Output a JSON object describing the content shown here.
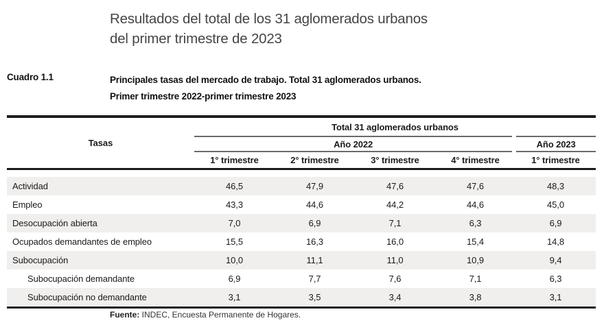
{
  "page": {
    "title_line1": "Resultados del total de los 31 aglomerados urbanos",
    "title_line2": "del primer trimestre de 2023",
    "table_label": "Cuadro 1.1",
    "subtitle_line1": "Principales tasas del mercado de trabajo. Total 31 aglomerados urbanos.",
    "subtitle_line2": "Primer trimestre 2022-primer trimestre 2023",
    "source_label": "Fuente:",
    "source_text": " INDEC, Encuesta Permanente de Hogares."
  },
  "table": {
    "corner_header": "Tasas",
    "group_header": "Total 31 aglomerados urbanos",
    "year_groups": [
      {
        "label": "Año 2022",
        "colspan": 4
      },
      {
        "label": "Año 2023",
        "colspan": 1
      }
    ],
    "column_headers": [
      "1° trimestre",
      "2° trimestre",
      "3° trimestre",
      "4° trimestre",
      "1° trimestre"
    ],
    "rows": [
      {
        "label": "Actividad",
        "indent": false,
        "values": [
          "46,5",
          "47,9",
          "47,6",
          "47,6",
          "48,3"
        ]
      },
      {
        "label": "Empleo",
        "indent": false,
        "values": [
          "43,3",
          "44,6",
          "44,2",
          "44,6",
          "45,0"
        ]
      },
      {
        "label": "Desocupación abierta",
        "indent": false,
        "values": [
          "7,0",
          "6,9",
          "7,1",
          "6,3",
          "6,9"
        ]
      },
      {
        "label": "Ocupados demandantes de empleo",
        "indent": false,
        "values": [
          "15,5",
          "16,3",
          "16,0",
          "15,4",
          "14,8"
        ]
      },
      {
        "label": "Subocupación",
        "indent": false,
        "values": [
          "10,0",
          "11,1",
          "11,0",
          "10,9",
          "9,4"
        ]
      },
      {
        "label": "Subocupación demandante",
        "indent": true,
        "values": [
          "6,9",
          "7,7",
          "7,6",
          "7,1",
          "6,3"
        ]
      },
      {
        "label": "Subocupación no demandante",
        "indent": true,
        "values": [
          "3,1",
          "3,5",
          "3,4",
          "3,8",
          "3,1"
        ]
      }
    ],
    "colors": {
      "band": "#f0efed",
      "rule_thick": "#1c1c1c",
      "rule_thin": "#6a6a6a"
    }
  }
}
